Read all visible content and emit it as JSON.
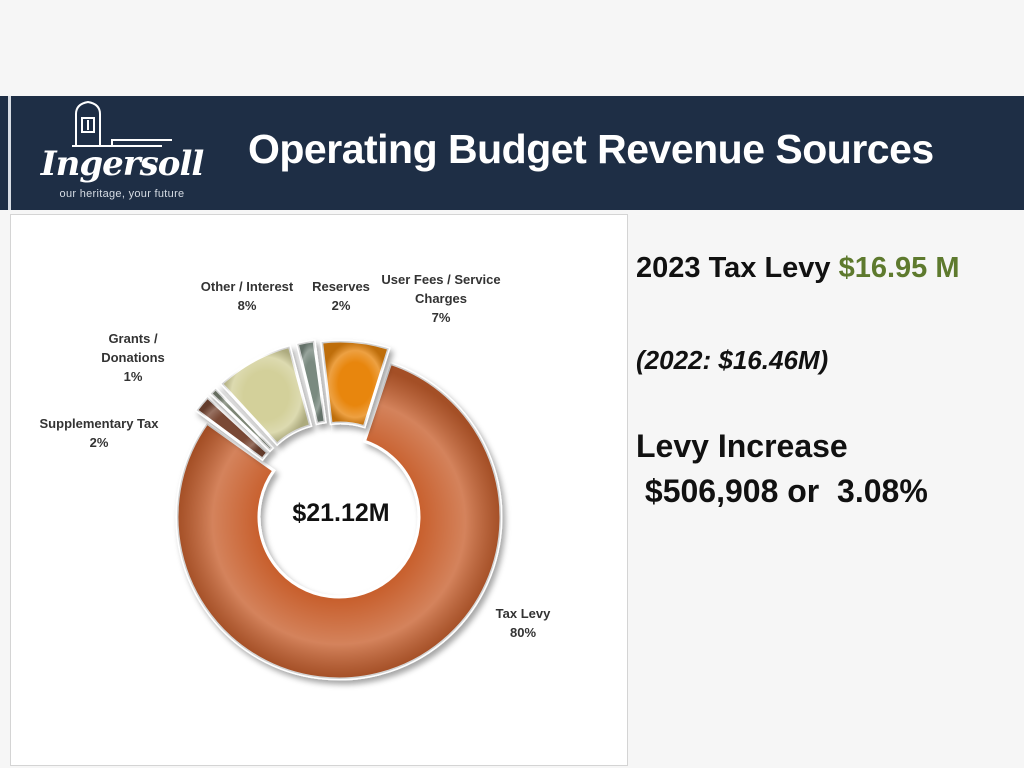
{
  "header": {
    "title": "Operating Budget Revenue Sources",
    "logo_text": "Ingersoll",
    "logo_tagline": "our heritage, your future",
    "background": "#1e2e45"
  },
  "summary": {
    "levy_label": "2023 Tax Levy",
    "levy_value": "$16.95 M",
    "levy_value_color": "#5e7a2e",
    "prior_year": "(2022: $16.46M)",
    "increase_label": "Levy Increase",
    "increase_value": " $506,908 or  3.08%"
  },
  "chart_data": {
    "type": "pie",
    "variant": "exploded-donut",
    "center_label": "$21.12M",
    "series": [
      {
        "name": "Tax Levy",
        "value": 80,
        "label": "80%",
        "color": "#c8612f"
      },
      {
        "name": "Supplementary Tax",
        "value": 2,
        "label": "2%",
        "color": "#7a4a36"
      },
      {
        "name": "Grants / Donations",
        "value": 1,
        "label": "1%",
        "color": "#7c8574"
      },
      {
        "name": "Other / Interest",
        "value": 8,
        "label": "8%",
        "color": "#d3d09a"
      },
      {
        "name": "Reserves",
        "value": 2,
        "label": "2%",
        "color": "#7a8a80"
      },
      {
        "name": "User Fees / Service Charges",
        "value": 7,
        "label": "7%",
        "color": "#e8860e"
      }
    ],
    "legend": "none",
    "grid": false
  }
}
